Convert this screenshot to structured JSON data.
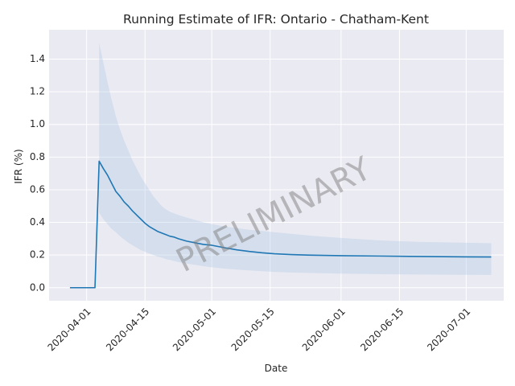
{
  "chart_data": {
    "type": "line",
    "title": "Running Estimate of IFR: Ontario - Chatham-Kent",
    "xlabel": "Date",
    "ylabel": "IFR (%)",
    "watermark": "PRELIMINARY",
    "xlim": [
      "2020-03-23",
      "2020-07-10"
    ],
    "ylim": [
      -0.08,
      1.58
    ],
    "x_ticks": [
      "2020-04-01",
      "2020-04-15",
      "2020-05-01",
      "2020-05-15",
      "2020-06-01",
      "2020-06-15",
      "2020-07-01"
    ],
    "y_ticks": [
      0.0,
      0.2,
      0.4,
      0.6,
      0.8,
      1.0,
      1.2,
      1.4
    ],
    "y_tick_labels": [
      "0.0",
      "0.2",
      "0.4",
      "0.6",
      "0.8",
      "1.0",
      "1.2",
      "1.4"
    ],
    "grid": true,
    "colors": {
      "line": "#1f77b4",
      "band": "#b0c8e4",
      "background": "#eaeaf2",
      "grid": "#ffffff"
    },
    "series": [
      {
        "x": [
          "2020-03-28",
          "2020-04-03",
          "2020-04-04",
          "2020-04-05",
          "2020-04-06",
          "2020-04-07",
          "2020-04-08",
          "2020-04-09",
          "2020-04-10",
          "2020-04-11",
          "2020-04-12",
          "2020-04-13",
          "2020-04-14",
          "2020-04-15",
          "2020-04-16",
          "2020-04-17",
          "2020-04-18",
          "2020-04-19",
          "2020-04-20",
          "2020-04-21",
          "2020-04-22",
          "2020-04-23",
          "2020-04-25",
          "2020-04-27",
          "2020-04-29",
          "2020-05-01",
          "2020-05-04",
          "2020-05-07",
          "2020-05-10",
          "2020-05-13",
          "2020-05-16",
          "2020-05-20",
          "2020-05-25",
          "2020-06-01",
          "2020-06-10",
          "2020-06-20",
          "2020-07-01",
          "2020-07-07"
        ],
        "values": [
          0.0,
          0.0,
          0.775,
          0.73,
          0.69,
          0.64,
          0.59,
          0.56,
          0.525,
          0.5,
          0.47,
          0.445,
          0.42,
          0.395,
          0.375,
          0.36,
          0.345,
          0.335,
          0.325,
          0.315,
          0.31,
          0.3,
          0.285,
          0.275,
          0.265,
          0.26,
          0.245,
          0.232,
          0.222,
          0.214,
          0.208,
          0.203,
          0.199,
          0.196,
          0.194,
          0.191,
          0.189,
          0.188
        ]
      }
    ],
    "band": {
      "x": [
        "2020-04-04",
        "2020-04-05",
        "2020-04-06",
        "2020-04-07",
        "2020-04-08",
        "2020-04-09",
        "2020-04-10",
        "2020-04-11",
        "2020-04-12",
        "2020-04-13",
        "2020-04-14",
        "2020-04-15",
        "2020-04-16",
        "2020-04-17",
        "2020-04-18",
        "2020-04-19",
        "2020-04-20",
        "2020-04-21",
        "2020-04-22",
        "2020-04-23",
        "2020-04-25",
        "2020-04-27",
        "2020-04-29",
        "2020-05-01",
        "2020-05-04",
        "2020-05-07",
        "2020-05-10",
        "2020-05-13",
        "2020-05-16",
        "2020-05-20",
        "2020-05-25",
        "2020-06-01",
        "2020-06-10",
        "2020-06-20",
        "2020-07-01",
        "2020-07-07"
      ],
      "upper": [
        1.5,
        1.38,
        1.26,
        1.15,
        1.05,
        0.97,
        0.9,
        0.84,
        0.78,
        0.73,
        0.68,
        0.64,
        0.6,
        0.56,
        0.53,
        0.5,
        0.48,
        0.465,
        0.455,
        0.445,
        0.43,
        0.415,
        0.4,
        0.39,
        0.375,
        0.365,
        0.355,
        0.348,
        0.34,
        0.33,
        0.318,
        0.305,
        0.29,
        0.28,
        0.275,
        0.272
      ],
      "lower": [
        0.46,
        0.42,
        0.39,
        0.36,
        0.34,
        0.315,
        0.295,
        0.275,
        0.26,
        0.245,
        0.23,
        0.22,
        0.21,
        0.2,
        0.19,
        0.185,
        0.175,
        0.17,
        0.163,
        0.157,
        0.148,
        0.14,
        0.132,
        0.125,
        0.117,
        0.111,
        0.106,
        0.101,
        0.097,
        0.093,
        0.09,
        0.086,
        0.083,
        0.081,
        0.079,
        0.078
      ]
    }
  }
}
